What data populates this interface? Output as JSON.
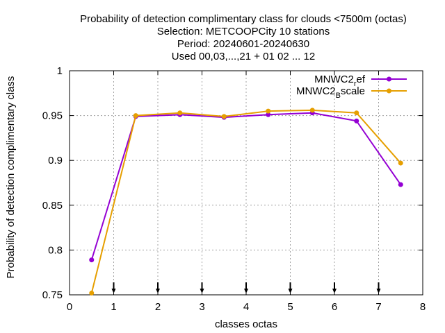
{
  "chart_data": {
    "type": "line",
    "title_lines": [
      "Probability of detection complimentary class  for clouds <7500m (octas)",
      "Selection: METCOOPCity     10 stations",
      "Period: 20240601-20240630",
      "Used 00,03,...,21 + 01 02 ... 12"
    ],
    "xlabel": "classes octas",
    "ylabel": "Probability of detection complimentary class",
    "xlim": [
      0,
      8
    ],
    "ylim": [
      0.75,
      1.0
    ],
    "x_ticks": [
      "0",
      "1",
      "2",
      "3",
      "4",
      "5",
      "6",
      "7",
      "8"
    ],
    "y_ticks": [
      "0.75",
      "0.8",
      "0.85",
      "0.9",
      "0.95",
      "1"
    ],
    "grid": true,
    "legend_position": "top-right",
    "series": [
      {
        "name_main": "MNWC2",
        "name_sub": "r",
        "name_rest": "ef",
        "color": "#9400d3",
        "x": [
          0.5,
          1.5,
          2.5,
          3.5,
          4.5,
          5.5,
          6.5,
          7.5
        ],
        "y": [
          0.789,
          0.949,
          0.951,
          0.948,
          0.951,
          0.953,
          0.944,
          0.873
        ]
      },
      {
        "name_main": "MNWC2",
        "name_sub": "B",
        "name_rest": "scale",
        "color": "#e69f00",
        "x": [
          0.5,
          1.5,
          2.5,
          3.5,
          4.5,
          5.5,
          6.5,
          7.5
        ],
        "y": [
          0.752,
          0.95,
          0.953,
          0.949,
          0.955,
          0.956,
          0.953,
          0.897
        ]
      }
    ],
    "arrow_marks_x": [
      1,
      2,
      3,
      4,
      5,
      6,
      7
    ]
  }
}
